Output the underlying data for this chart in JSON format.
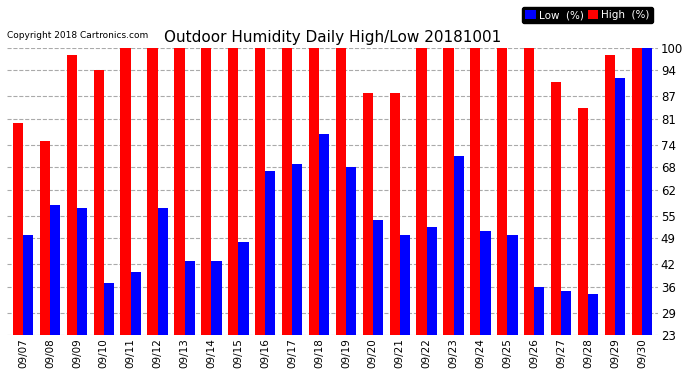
{
  "title": "Outdoor Humidity Daily High/Low 20181001",
  "copyright": "Copyright 2018 Cartronics.com",
  "dates": [
    "09/07",
    "09/08",
    "09/09",
    "09/10",
    "09/11",
    "09/12",
    "09/13",
    "09/14",
    "09/15",
    "09/16",
    "09/17",
    "09/18",
    "09/19",
    "09/20",
    "09/21",
    "09/22",
    "09/23",
    "09/24",
    "09/25",
    "09/26",
    "09/27",
    "09/28",
    "09/29",
    "09/30"
  ],
  "high": [
    80,
    75,
    98,
    94,
    100,
    100,
    100,
    100,
    100,
    100,
    100,
    100,
    100,
    88,
    88,
    100,
    100,
    100,
    100,
    100,
    91,
    84,
    98,
    100
  ],
  "low": [
    50,
    58,
    57,
    37,
    40,
    57,
    43,
    43,
    48,
    67,
    69,
    77,
    68,
    54,
    50,
    52,
    71,
    51,
    50,
    36,
    35,
    34,
    92,
    100
  ],
  "ylim_min": 23,
  "ylim_max": 100,
  "yticks": [
    23,
    29,
    36,
    42,
    49,
    55,
    62,
    68,
    74,
    81,
    87,
    94,
    100
  ],
  "bar_width": 0.38,
  "high_color": "#FF0000",
  "low_color": "#0000FF",
  "grid_color": "#AAAAAA",
  "bg_color": "#FFFFFF",
  "legend_low_label": "Low  (%)",
  "legend_high_label": "High  (%)"
}
